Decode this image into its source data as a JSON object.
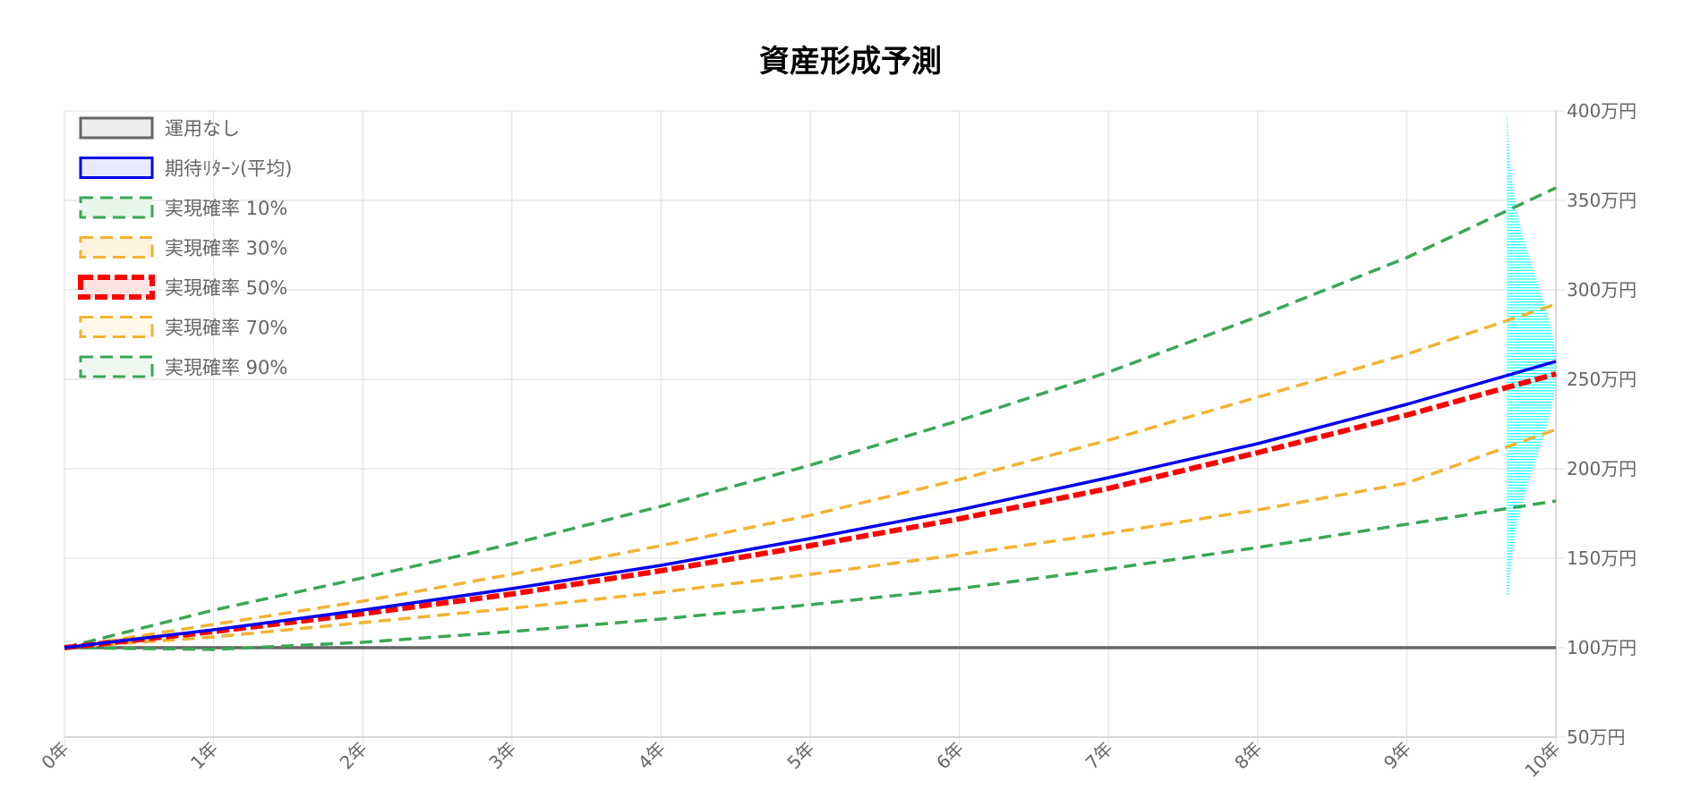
{
  "chart_data": {
    "type": "line",
    "title": "資産形成予測",
    "x": [
      0,
      1,
      2,
      3,
      4,
      5,
      6,
      7,
      8,
      9,
      10
    ],
    "x_tick_labels": [
      "0年",
      "1年",
      "2年",
      "3年",
      "4年",
      "5年",
      "6年",
      "7年",
      "8年",
      "9年",
      "10年"
    ],
    "xlim": [
      0,
      10
    ],
    "ylim": [
      50,
      400
    ],
    "y_ticks": [
      50,
      100,
      150,
      200,
      250,
      300,
      350,
      400
    ],
    "y_tick_labels": [
      "50万円",
      "100万円",
      "150万円",
      "200万円",
      "250万円",
      "300万円",
      "350万円",
      "400万円"
    ],
    "y_axis_position": "right",
    "grid": true,
    "legend_position": "top-left",
    "series": [
      {
        "name": "運用なし",
        "color": "#666666",
        "fill": "#eeeeee",
        "dash": false,
        "values": [
          100,
          100,
          100,
          100,
          100,
          100,
          100,
          100,
          100,
          100,
          100
        ]
      },
      {
        "name": "期待ﾘﾀｰﾝ(平均)",
        "color": "#0000ee",
        "fill": "#e8e8ff",
        "dash": false,
        "values": [
          100,
          110,
          121,
          133,
          146,
          161,
          177,
          195,
          214,
          236,
          260
        ]
      },
      {
        "name": "実現確率 10%",
        "color": "#3aa757",
        "fill": "#e6f6e9",
        "dash": true,
        "values": [
          100,
          121,
          139,
          158,
          179,
          202,
          227,
          254,
          285,
          318,
          357
        ]
      },
      {
        "name": "実現確率 30%",
        "color": "#f2b233",
        "fill": "#fdf3df",
        "dash": true,
        "values": [
          100,
          113,
          126,
          141,
          157,
          174,
          194,
          216,
          240,
          264,
          292
        ]
      },
      {
        "name": "実現確率 50%",
        "color": "#ff0000",
        "fill": "#fde3e3",
        "dash": true,
        "values": [
          100,
          109,
          119,
          130,
          143,
          157,
          172,
          189,
          209,
          230,
          253
        ]
      },
      {
        "name": "実現確率 70%",
        "color": "#f2b233",
        "fill": "#fff8e8",
        "dash": true,
        "values": [
          100,
          106,
          114,
          122,
          131,
          141,
          152,
          164,
          177,
          192,
          222
        ]
      },
      {
        "name": "実現確率 90%",
        "color": "#3aa757",
        "fill": "#eef8f0",
        "dash": true,
        "values": [
          100,
          99,
          103,
          109,
          116,
          124,
          133,
          144,
          156,
          169,
          182
        ]
      }
    ],
    "distribution": {
      "color": "#00ffff",
      "x_start": 9.67,
      "x_end": 10,
      "mean": 256,
      "sd": 50,
      "ymin": 130,
      "ymax": 400
    }
  }
}
